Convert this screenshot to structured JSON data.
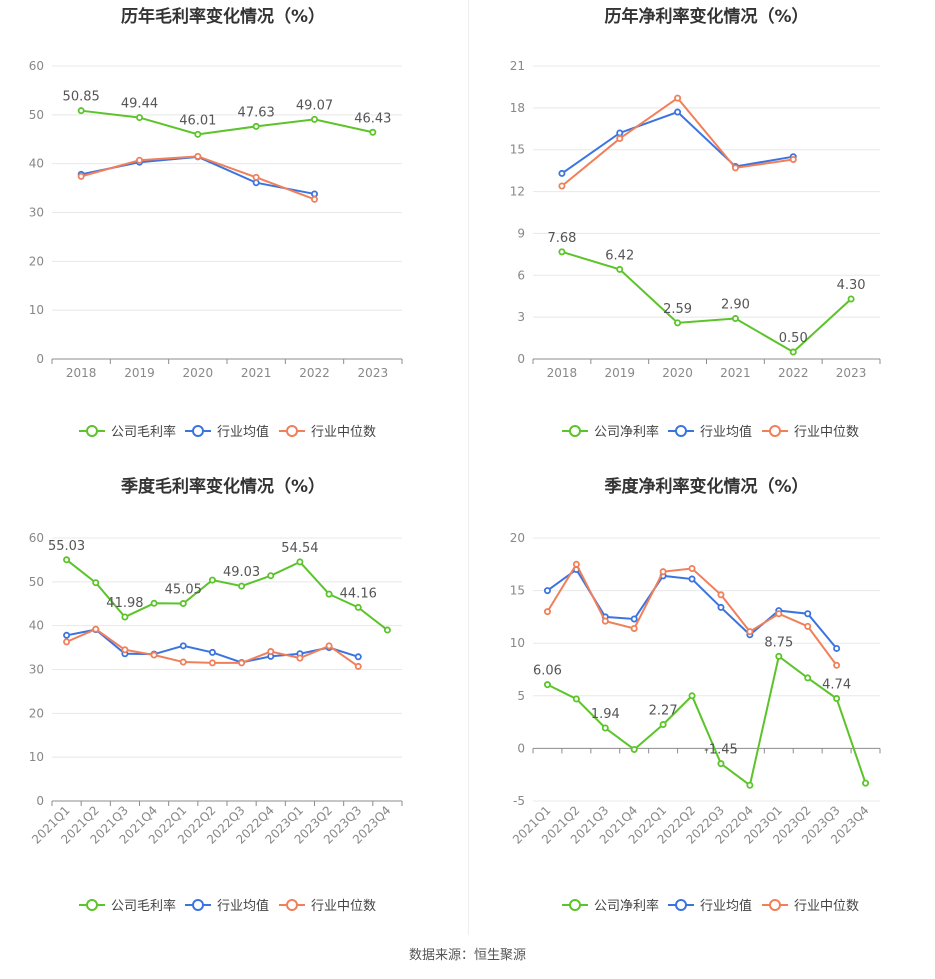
{
  "colors": {
    "company": "#5bc42a",
    "industry_avg": "#3b74e0",
    "industry_median": "#f07f5a",
    "grid": "#e8e8e8",
    "axis": "#8c8c8c",
    "title": "#333333",
    "label": "#555555",
    "tick": "#888888"
  },
  "footer": "数据来源：恒生聚源",
  "chart_data": [
    {
      "type": "line",
      "title": "历年毛利率变化情况（%）",
      "categories": [
        "2018",
        "2019",
        "2020",
        "2021",
        "2022",
        "2023"
      ],
      "ylim": [
        0,
        60
      ],
      "yticks": [
        0,
        10,
        20,
        30,
        40,
        50,
        60
      ],
      "x_rotated": false,
      "legend": "bottom",
      "series": [
        {
          "name": "公司毛利率",
          "key": "company",
          "values": [
            50.85,
            49.44,
            46.01,
            47.63,
            49.07,
            46.43
          ],
          "labels": [
            "50.85",
            "49.44",
            "46.01",
            "47.63",
            "49.07",
            "46.43"
          ]
        },
        {
          "name": "行业均值",
          "key": "industry_avg",
          "values": [
            37.8,
            40.3,
            41.4,
            36.1,
            33.8,
            null
          ]
        },
        {
          "name": "行业中位数",
          "key": "industry_median",
          "values": [
            37.4,
            40.7,
            41.5,
            37.2,
            32.7,
            null
          ]
        }
      ]
    },
    {
      "type": "line",
      "title": "历年净利率变化情况（%）",
      "categories": [
        "2018",
        "2019",
        "2020",
        "2021",
        "2022",
        "2023"
      ],
      "ylim": [
        0,
        21
      ],
      "yticks": [
        0,
        3,
        6,
        9,
        12,
        15,
        18,
        21
      ],
      "x_rotated": false,
      "legend": "bottom",
      "series": [
        {
          "name": "公司净利率",
          "key": "company",
          "values": [
            7.68,
            6.42,
            2.59,
            2.9,
            0.5,
            4.3
          ],
          "labels": [
            "7.68",
            "6.42",
            "2.59",
            "2.90",
            "0.50",
            "4.30"
          ]
        },
        {
          "name": "行业均值",
          "key": "industry_avg",
          "values": [
            13.3,
            16.2,
            17.7,
            13.8,
            14.5,
            null
          ]
        },
        {
          "name": "行业中位数",
          "key": "industry_median",
          "values": [
            12.4,
            15.8,
            18.7,
            13.7,
            14.3,
            null
          ]
        }
      ]
    },
    {
      "type": "line",
      "title": "季度毛利率变化情况（%）",
      "categories": [
        "2021Q1",
        "2021Q2",
        "2021Q3",
        "2021Q4",
        "2022Q1",
        "2022Q2",
        "2022Q3",
        "2022Q4",
        "2023Q1",
        "2023Q2",
        "2023Q3",
        "2023Q4"
      ],
      "ylim": [
        0,
        60
      ],
      "yticks": [
        0,
        10,
        20,
        30,
        40,
        50,
        60
      ],
      "x_rotated": true,
      "legend": "bottom",
      "series": [
        {
          "name": "公司毛利率",
          "key": "company",
          "values": [
            55.03,
            49.8,
            41.98,
            45.1,
            45.05,
            50.4,
            49.03,
            51.4,
            54.54,
            47.2,
            44.16,
            39.0
          ],
          "labels": [
            "55.03",
            "",
            "41.98",
            "",
            "45.05",
            "",
            "49.03",
            "",
            "54.54",
            "",
            "44.16",
            ""
          ]
        },
        {
          "name": "行业均值",
          "key": "industry_avg",
          "values": [
            37.8,
            39.1,
            33.6,
            33.5,
            35.4,
            33.9,
            31.6,
            33.0,
            33.6,
            35.0,
            32.9,
            null
          ]
        },
        {
          "name": "行业中位数",
          "key": "industry_median",
          "values": [
            36.3,
            39.2,
            34.5,
            33.3,
            31.7,
            31.5,
            31.5,
            34.1,
            32.6,
            35.4,
            30.7,
            null
          ]
        }
      ]
    },
    {
      "type": "line",
      "title": "季度净利率变化情况（%）",
      "categories": [
        "2021Q1",
        "2021Q2",
        "2021Q3",
        "2021Q4",
        "2022Q1",
        "2022Q2",
        "2022Q3",
        "2022Q4",
        "2023Q1",
        "2023Q2",
        "2023Q3",
        "2023Q4"
      ],
      "ylim": [
        -5,
        20
      ],
      "yticks": [
        -5,
        0,
        5,
        10,
        15,
        20
      ],
      "x_rotated": true,
      "legend": "bottom",
      "series": [
        {
          "name": "公司净利率",
          "key": "company",
          "values": [
            6.06,
            4.7,
            1.94,
            -0.1,
            2.27,
            5.0,
            -1.45,
            -3.5,
            8.75,
            6.7,
            4.74,
            -3.3
          ],
          "labels": [
            "6.06",
            "",
            "1.94",
            "",
            "2.27",
            "",
            "-1.45",
            "",
            "8.75",
            "",
            "4.74",
            ""
          ]
        },
        {
          "name": "行业均值",
          "key": "industry_avg",
          "values": [
            15.0,
            17.0,
            12.5,
            12.3,
            16.4,
            16.1,
            13.4,
            10.8,
            13.1,
            12.8,
            9.5,
            null
          ]
        },
        {
          "name": "行业中位数",
          "key": "industry_median",
          "values": [
            13.0,
            17.5,
            12.1,
            11.4,
            16.8,
            17.1,
            14.6,
            11.1,
            12.8,
            11.6,
            7.9,
            null
          ]
        }
      ]
    }
  ]
}
